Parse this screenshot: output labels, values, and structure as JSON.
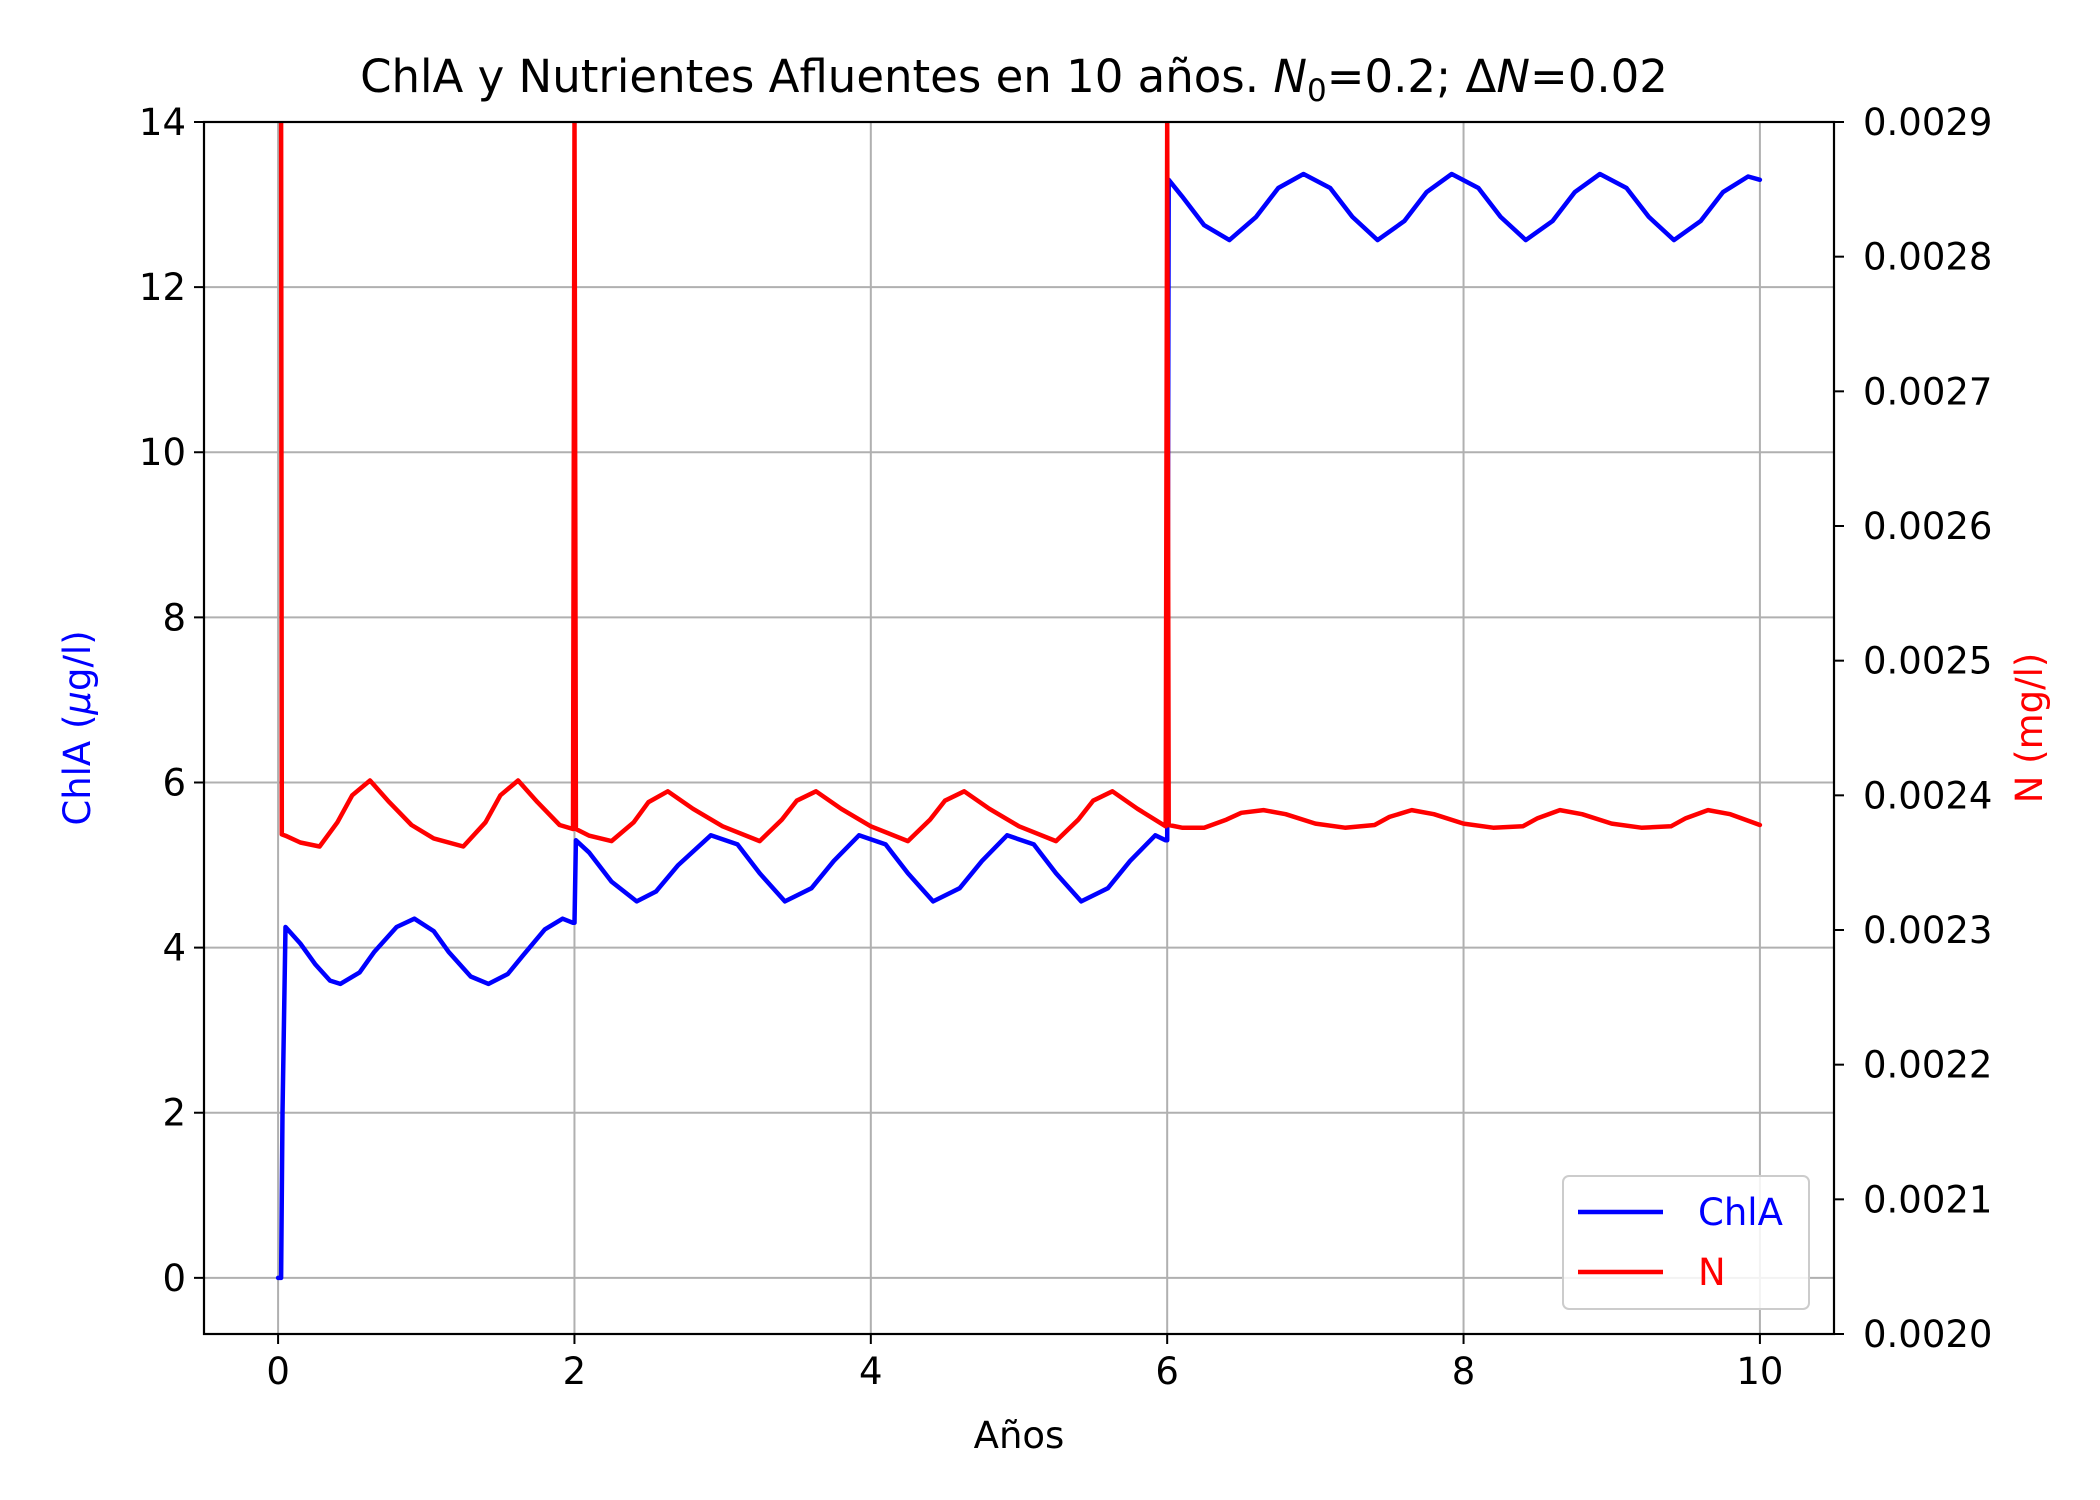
{
  "chart_data": {
    "type": "line",
    "title": {
      "prefix": "ChlA y Nutrientes Afluentes en 10 años. ",
      "n0_symbol": "N",
      "n0_subscript": "0",
      "n0_value": "=0.2; Δ",
      "dn_symbol": "N",
      "dn_value": "=0.02"
    },
    "xlabel": "Años",
    "ylabel_left": {
      "prefix": "ChlA (",
      "mu": "μ",
      "suffix": "g/l)"
    },
    "ylabel_right": "N (mg/l)",
    "xlim": [
      -0.5,
      10.5
    ],
    "ylim_left": [
      -0.68,
      14
    ],
    "ylim_right": [
      0.002,
      0.0029
    ],
    "xticks": [
      0,
      2,
      4,
      6,
      8,
      10
    ],
    "xtick_labels": [
      "0",
      "2",
      "4",
      "6",
      "8",
      "10"
    ],
    "yticks_left": [
      0,
      2,
      4,
      6,
      8,
      10,
      12,
      14
    ],
    "ytick_labels_left": [
      "0",
      "2",
      "4",
      "6",
      "8",
      "10",
      "12",
      "14"
    ],
    "yticks_right": [
      0.002,
      0.0021,
      0.0022,
      0.0023,
      0.0024,
      0.0025,
      0.0026,
      0.0027,
      0.0028,
      0.0029
    ],
    "ytick_labels_right": [
      "0.0020",
      "0.0021",
      "0.0022",
      "0.0023",
      "0.0024",
      "0.0025",
      "0.0026",
      "0.0027",
      "0.0028",
      "0.0029"
    ],
    "grid": true,
    "legend_position": "bottom-right",
    "series": [
      {
        "name": "ChlA",
        "axis": "left",
        "color": "#0000ff",
        "x": [
          0,
          0.02,
          0.03,
          0.05,
          0.15,
          0.25,
          0.35,
          0.42,
          0.55,
          0.65,
          0.8,
          0.92,
          1.05,
          1.15,
          1.3,
          1.42,
          1.55,
          1.65,
          1.8,
          1.92,
          1.99,
          2.0,
          2.01,
          2.1,
          2.25,
          2.42,
          2.55,
          2.7,
          2.92,
          3.1,
          3.25,
          3.42,
          3.6,
          3.75,
          3.92,
          4.1,
          4.25,
          4.42,
          4.6,
          4.75,
          4.92,
          5.1,
          5.25,
          5.42,
          5.6,
          5.75,
          5.92,
          5.99,
          6.0,
          6.01,
          6.1,
          6.25,
          6.42,
          6.6,
          6.75,
          6.92,
          7.1,
          7.25,
          7.42,
          7.6,
          7.75,
          7.92,
          8.1,
          8.25,
          8.42,
          8.6,
          8.75,
          8.92,
          9.1,
          9.25,
          9.42,
          9.6,
          9.75,
          9.92,
          10.0
        ],
        "y": [
          0,
          0,
          2.0,
          4.25,
          4.05,
          3.8,
          3.6,
          3.56,
          3.7,
          3.95,
          4.25,
          4.35,
          4.2,
          3.95,
          3.65,
          3.56,
          3.68,
          3.9,
          4.22,
          4.35,
          4.3,
          4.3,
          5.3,
          5.15,
          4.8,
          4.56,
          4.68,
          5.0,
          5.36,
          5.25,
          4.9,
          4.56,
          4.72,
          5.05,
          5.36,
          5.25,
          4.9,
          4.56,
          4.72,
          5.05,
          5.36,
          5.25,
          4.9,
          4.56,
          4.72,
          5.05,
          5.36,
          5.3,
          5.3,
          13.3,
          13.1,
          12.75,
          12.57,
          12.85,
          13.2,
          13.37,
          13.2,
          12.85,
          12.57,
          12.8,
          13.15,
          13.37,
          13.2,
          12.85,
          12.57,
          12.8,
          13.15,
          13.37,
          13.2,
          12.85,
          12.57,
          12.8,
          13.15,
          13.34,
          13.3
        ]
      },
      {
        "name": "N",
        "axis": "right",
        "color": "#ff0000",
        "x": [
          0.02,
          0.025,
          0.05,
          0.15,
          0.28,
          0.4,
          0.5,
          0.62,
          0.75,
          0.9,
          1.05,
          1.25,
          1.4,
          1.5,
          1.62,
          1.75,
          1.9,
          1.99,
          2.0,
          2.01,
          2.1,
          2.25,
          2.4,
          2.5,
          2.63,
          2.8,
          3.0,
          3.25,
          3.4,
          3.5,
          3.63,
          3.8,
          4.0,
          4.25,
          4.4,
          4.5,
          4.63,
          4.8,
          5.0,
          5.25,
          5.4,
          5.5,
          5.63,
          5.8,
          5.99,
          6.0,
          6.01,
          6.1,
          6.25,
          6.4,
          6.5,
          6.65,
          6.8,
          7.0,
          7.2,
          7.4,
          7.5,
          7.65,
          7.8,
          8.0,
          8.2,
          8.4,
          8.5,
          8.65,
          8.8,
          9.0,
          9.2,
          9.4,
          9.5,
          9.65,
          9.8,
          10.0
        ],
        "y": [
          0.0029,
          0.002371,
          0.00237,
          0.002365,
          0.002362,
          0.00238,
          0.0024,
          0.002411,
          0.002395,
          0.002378,
          0.002368,
          0.002362,
          0.00238,
          0.0024,
          0.002411,
          0.002395,
          0.002378,
          0.002375,
          0.0029,
          0.002375,
          0.00237,
          0.002366,
          0.00238,
          0.002395,
          0.002403,
          0.00239,
          0.002377,
          0.002366,
          0.002382,
          0.002396,
          0.002403,
          0.00239,
          0.002377,
          0.002366,
          0.002382,
          0.002396,
          0.002403,
          0.00239,
          0.002377,
          0.002366,
          0.002382,
          0.002396,
          0.002403,
          0.00239,
          0.002377,
          0.0029,
          0.002378,
          0.002376,
          0.002376,
          0.002382,
          0.002387,
          0.002389,
          0.002386,
          0.002379,
          0.002376,
          0.002378,
          0.002384,
          0.002389,
          0.002386,
          0.002379,
          0.002376,
          0.002377,
          0.002383,
          0.002389,
          0.002386,
          0.002379,
          0.002376,
          0.002377,
          0.002383,
          0.002389,
          0.002386,
          0.002378
        ]
      }
    ]
  }
}
